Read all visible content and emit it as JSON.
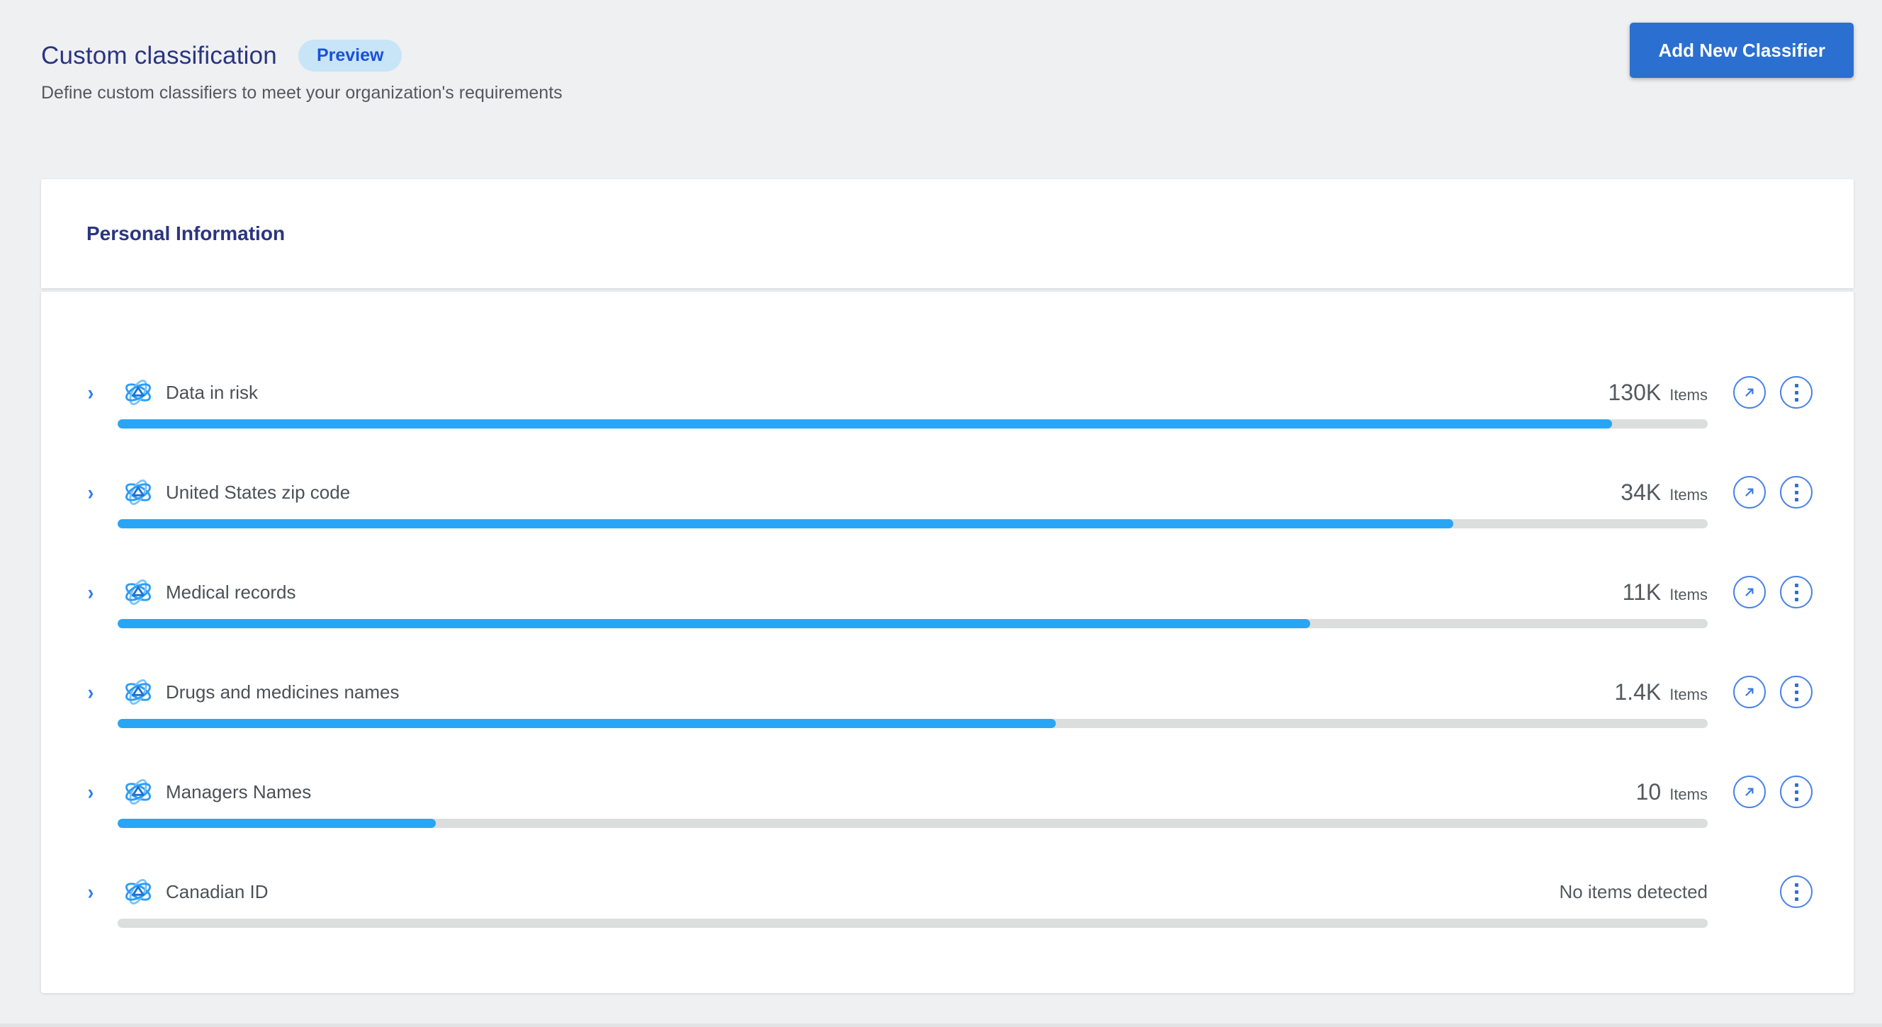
{
  "header": {
    "title": "Custom classification",
    "badge": "Preview",
    "subtitle": "Define custom classifiers to meet your organization's requirements",
    "add_button_label": "Add New Classifier"
  },
  "card": {
    "section_title": "Personal Information",
    "rows": [
      {
        "label": "Data in risk",
        "count": "130K",
        "count_suffix": "Items",
        "progress_percent": 94,
        "has_open_action": true
      },
      {
        "label": "United States zip code",
        "count": "34K",
        "count_suffix": "Items",
        "progress_percent": 84,
        "has_open_action": true
      },
      {
        "label": "Medical records",
        "count": "11K",
        "count_suffix": "Items",
        "progress_percent": 75,
        "has_open_action": true
      },
      {
        "label": "Drugs and medicines names",
        "count": "1.4K",
        "count_suffix": "Items",
        "progress_percent": 59,
        "has_open_action": true
      },
      {
        "label": "Managers Names",
        "count": "10",
        "count_suffix": "Items",
        "progress_percent": 20,
        "has_open_action": true
      },
      {
        "label": "Canadian ID",
        "count": null,
        "status_text": "No items detected",
        "progress_percent": 0,
        "has_open_action": false
      }
    ]
  },
  "colors": {
    "accent_navy": "#2a3580",
    "button_blue": "#2b6fd0",
    "badge_background": "#c8e5f8",
    "badge_text": "#1a51d9",
    "bar_fill": "#29a5f6",
    "bar_track": "#dcdddd",
    "action_blue": "#4a83e6"
  },
  "icons": {
    "row_icon": "classifier-atom-icon",
    "expand_icon": "chevron-right-icon",
    "open_icon": "arrow-up-right-icon",
    "menu_icon": "kebab-menu-icon"
  }
}
